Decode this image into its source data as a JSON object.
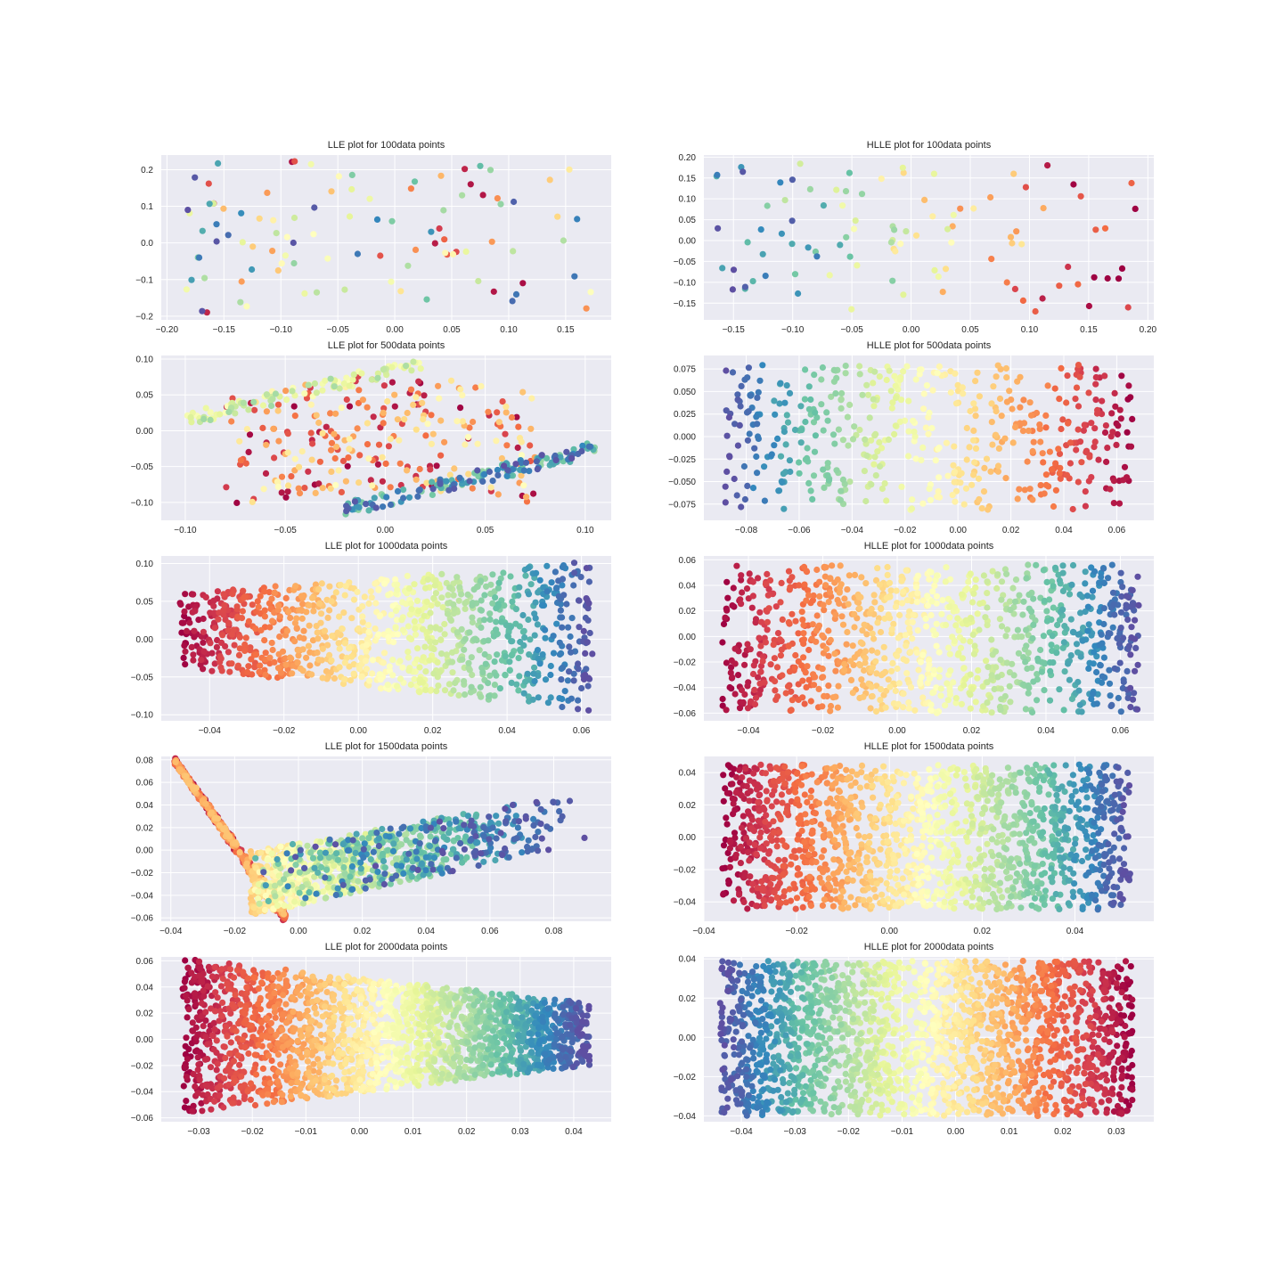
{
  "colors": {
    "figure_bg": "#ffffff",
    "axes_bg": "#eaeaf2",
    "grid": "#ffffff",
    "text": "#262626",
    "colormap": "Spectral",
    "colormap_stops": [
      "#9e0142",
      "#d53e4f",
      "#f46d43",
      "#fdae61",
      "#fee08b",
      "#ffffbf",
      "#e6f598",
      "#abdda4",
      "#66c2a5",
      "#3288bd",
      "#5e4fa2"
    ]
  },
  "chart_data": [
    {
      "type": "scatter",
      "title": "LLE plot for 100data points",
      "xlim": [
        -0.205,
        0.19
      ],
      "ylim": [
        -0.21,
        0.24
      ],
      "xticks": [
        -0.2,
        -0.15,
        -0.1,
        -0.05,
        0.0,
        0.05,
        0.1,
        0.15
      ],
      "xtick_labels": [
        "−0.20",
        "−0.15",
        "−0.10",
        "−0.05",
        "0.00",
        "0.05",
        "0.10",
        "0.15"
      ],
      "yticks": [
        -0.2,
        -0.1,
        0.0,
        0.1,
        0.2
      ],
      "ytick_labels": [
        "−0.2",
        "−0.1",
        "0.0",
        "0.1",
        "0.2"
      ],
      "grid": true,
      "n_points": 100,
      "color_by": "Spectral colormap",
      "shape": {
        "kind": "scatter_random",
        "seed": 11
      }
    },
    {
      "type": "scatter",
      "title": "HLLE plot for 100data points",
      "xlim": [
        -0.175,
        0.205
      ],
      "ylim": [
        -0.19,
        0.205
      ],
      "xticks": [
        -0.15,
        -0.1,
        -0.05,
        0.0,
        0.05,
        0.1,
        0.15,
        0.2
      ],
      "xtick_labels": [
        "−0.15",
        "−0.10",
        "−0.05",
        "0.00",
        "0.05",
        "0.10",
        "0.15",
        "0.20"
      ],
      "yticks": [
        -0.15,
        -0.1,
        -0.05,
        0.0,
        0.05,
        0.1,
        0.15,
        0.2
      ],
      "ytick_labels": [
        "−0.15",
        "−0.10",
        "−0.05",
        "0.00",
        "0.05",
        "0.10",
        "0.15",
        "0.20"
      ],
      "grid": true,
      "n_points": 100,
      "color_by": "Spectral colormap",
      "shape": {
        "kind": "rect",
        "x0": -0.165,
        "x1": 0.19,
        "y0": -0.17,
        "y1": 0.19,
        "reverse": true,
        "seed": 12,
        "jitter": 0.35
      }
    },
    {
      "type": "scatter",
      "title": "LLE plot for 500data points",
      "xlim": [
        -0.112,
        0.113
      ],
      "ylim": [
        -0.125,
        0.105
      ],
      "xticks": [
        -0.1,
        -0.05,
        0.0,
        0.05,
        0.1
      ],
      "xtick_labels": [
        "−0.10",
        "−0.05",
        "0.00",
        "0.05",
        "0.10"
      ],
      "yticks": [
        -0.1,
        -0.05,
        0.0,
        0.05,
        0.1
      ],
      "ytick_labels": [
        "−0.10",
        "−0.05",
        "0.00",
        "0.05",
        "0.10"
      ],
      "grid": true,
      "n_points": 500,
      "color_by": "Spectral colormap",
      "shape": {
        "kind": "lle500",
        "seed": 13
      }
    },
    {
      "type": "scatter",
      "title": "HLLE plot for 500data points",
      "xlim": [
        -0.096,
        0.074
      ],
      "ylim": [
        -0.093,
        0.09
      ],
      "xticks": [
        -0.08,
        -0.06,
        -0.04,
        -0.02,
        0.0,
        0.02,
        0.04,
        0.06
      ],
      "xtick_labels": [
        "−0.08",
        "−0.06",
        "−0.04",
        "−0.02",
        "0.00",
        "0.02",
        "0.04",
        "0.06"
      ],
      "yticks": [
        -0.075,
        -0.05,
        -0.025,
        0.0,
        0.025,
        0.05,
        0.075
      ],
      "ytick_labels": [
        "−0.075",
        "−0.050",
        "−0.025",
        "0.000",
        "0.025",
        "0.050",
        "0.075"
      ],
      "grid": true,
      "n_points": 500,
      "color_by": "Spectral colormap",
      "shape": {
        "kind": "rect",
        "x0": -0.088,
        "x1": 0.066,
        "y0": -0.082,
        "y1": 0.08,
        "reverse": true,
        "seed": 14,
        "jitter": 0.06
      }
    },
    {
      "type": "scatter",
      "title": "LLE plot for 1000data points",
      "xlim": [
        -0.053,
        0.068
      ],
      "ylim": [
        -0.108,
        0.11
      ],
      "xticks": [
        -0.04,
        -0.02,
        0.0,
        0.02,
        0.04,
        0.06
      ],
      "xtick_labels": [
        "−0.04",
        "−0.02",
        "0.00",
        "0.02",
        "0.04",
        "0.06"
      ],
      "yticks": [
        -0.1,
        -0.05,
        0.0,
        0.05,
        0.1
      ],
      "ytick_labels": [
        "−0.10",
        "−0.05",
        "0.00",
        "0.05",
        "0.10"
      ],
      "grid": true,
      "n_points": 1000,
      "color_by": "Spectral colormap",
      "shape": {
        "kind": "trap",
        "x0": -0.048,
        "x1": 0.063,
        "ylo0": -0.038,
        "yhi0": 0.06,
        "ylo1": -0.095,
        "yhi1": 0.103,
        "reverse": false,
        "seed": 15
      }
    },
    {
      "type": "scatter",
      "title": "HLLE plot for 1000data points",
      "xlim": [
        -0.052,
        0.069
      ],
      "ylim": [
        -0.066,
        0.063
      ],
      "xticks": [
        -0.04,
        -0.02,
        0.0,
        0.02,
        0.04,
        0.06
      ],
      "xtick_labels": [
        "−0.04",
        "−0.02",
        "0.00",
        "0.02",
        "0.04",
        "0.06"
      ],
      "yticks": [
        -0.06,
        -0.04,
        -0.02,
        0.0,
        0.02,
        0.04,
        0.06
      ],
      "ytick_labels": [
        "−0.06",
        "−0.04",
        "−0.02",
        "0.00",
        "0.02",
        "0.04",
        "0.06"
      ],
      "grid": true,
      "n_points": 1000,
      "color_by": "Spectral colormap",
      "shape": {
        "kind": "rect",
        "x0": -0.047,
        "x1": 0.065,
        "y0": -0.06,
        "y1": 0.056,
        "reverse": false,
        "seed": 16,
        "jitter": 0.05
      }
    },
    {
      "type": "scatter",
      "title": "LLE plot for 1500data points",
      "xlim": [
        -0.043,
        0.098
      ],
      "ylim": [
        -0.063,
        0.083
      ],
      "xticks": [
        -0.04,
        -0.02,
        0.0,
        0.02,
        0.04,
        0.06,
        0.08
      ],
      "xtick_labels": [
        "−0.04",
        "−0.02",
        "0.00",
        "0.02",
        "0.04",
        "0.06",
        "0.08"
      ],
      "yticks": [
        -0.06,
        -0.04,
        -0.02,
        0.0,
        0.02,
        0.04,
        0.06,
        0.08
      ],
      "ytick_labels": [
        "−0.06",
        "−0.04",
        "−0.02",
        "0.00",
        "0.02",
        "0.04",
        "0.06",
        "0.08"
      ],
      "grid": true,
      "n_points": 1500,
      "color_by": "Spectral colormap",
      "shape": {
        "kind": "lle1500",
        "seed": 17
      }
    },
    {
      "type": "scatter",
      "title": "HLLE plot for 1500data points",
      "xlim": [
        -0.04,
        0.057
      ],
      "ylim": [
        -0.052,
        0.05
      ],
      "xticks": [
        -0.04,
        -0.02,
        0.0,
        0.02,
        0.04
      ],
      "xtick_labels": [
        "−0.04",
        "−0.02",
        "0.00",
        "0.02",
        "0.04"
      ],
      "yticks": [
        -0.04,
        -0.02,
        0.0,
        0.02,
        0.04
      ],
      "ytick_labels": [
        "−0.04",
        "−0.02",
        "0.00",
        "0.02",
        "0.04"
      ],
      "grid": true,
      "n_points": 1500,
      "color_by": "Spectral colormap",
      "shape": {
        "kind": "rect",
        "x0": -0.036,
        "x1": 0.052,
        "y0": -0.045,
        "y1": 0.045,
        "reverse": false,
        "seed": 18,
        "jitter": 0.05
      }
    },
    {
      "type": "scatter",
      "title": "LLE plot for 2000data points",
      "xlim": [
        -0.037,
        0.047
      ],
      "ylim": [
        -0.063,
        0.063
      ],
      "xticks": [
        -0.03,
        -0.02,
        -0.01,
        0.0,
        0.01,
        0.02,
        0.03,
        0.04
      ],
      "xtick_labels": [
        "−0.03",
        "−0.02",
        "−0.01",
        "0.00",
        "0.01",
        "0.02",
        "0.03",
        "0.04"
      ],
      "yticks": [
        -0.06,
        -0.04,
        -0.02,
        0.0,
        0.02,
        0.04,
        0.06
      ],
      "ytick_labels": [
        "−0.06",
        "−0.04",
        "−0.02",
        "0.00",
        "0.02",
        "0.04",
        "0.06"
      ],
      "grid": true,
      "n_points": 2000,
      "color_by": "Spectral colormap",
      "shape": {
        "kind": "trap",
        "x0": -0.033,
        "x1": 0.043,
        "ylo0": -0.057,
        "yhi0": 0.062,
        "ylo1": -0.02,
        "yhi1": 0.028,
        "reverse": false,
        "seed": 19
      }
    },
    {
      "type": "scatter",
      "title": "HLLE plot for 2000data points",
      "xlim": [
        -0.047,
        0.037
      ],
      "ylim": [
        -0.043,
        0.041
      ],
      "xticks": [
        -0.04,
        -0.03,
        -0.02,
        -0.01,
        0.0,
        0.01,
        0.02,
        0.03
      ],
      "xtick_labels": [
        "−0.04",
        "−0.03",
        "−0.02",
        "−0.01",
        "0.00",
        "0.01",
        "0.02",
        "0.03"
      ],
      "yticks": [
        -0.04,
        -0.02,
        0.0,
        0.02,
        0.04
      ],
      "ytick_labels": [
        "−0.04",
        "−0.02",
        "0.00",
        "0.02",
        "0.04"
      ],
      "grid": true,
      "n_points": 2000,
      "color_by": "Spectral colormap",
      "shape": {
        "kind": "rect",
        "x0": -0.044,
        "x1": 0.033,
        "y0": -0.04,
        "y1": 0.039,
        "reverse": true,
        "seed": 20,
        "jitter": 0.05
      }
    }
  ]
}
